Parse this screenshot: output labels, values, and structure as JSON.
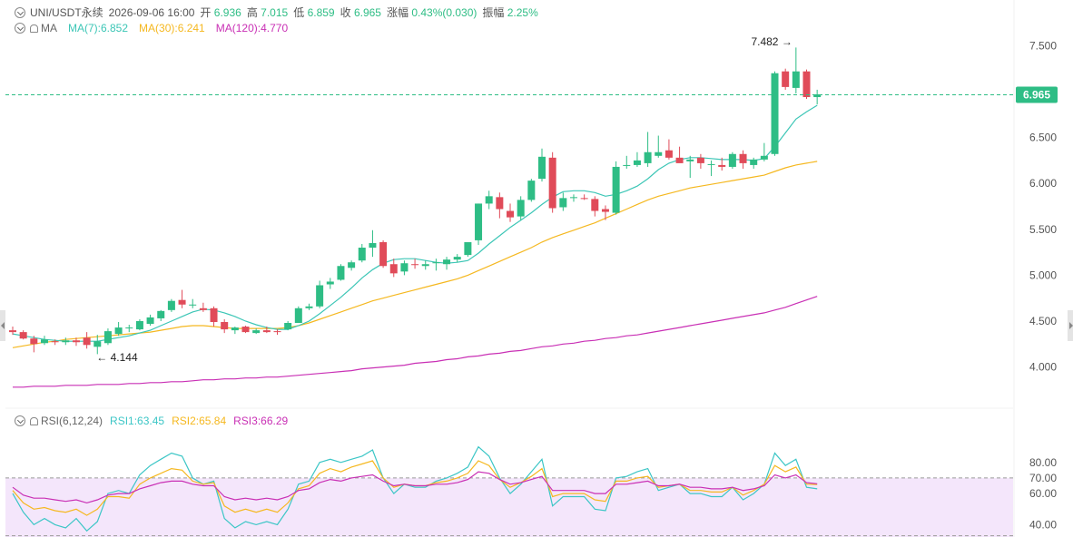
{
  "header": {
    "symbol": "UNI/USDT永续",
    "datetime": "2026-09-06 16:00",
    "open_label": "开",
    "open": "6.936",
    "high_label": "高",
    "high": "7.015",
    "low_label": "低",
    "low": "6.859",
    "close_label": "收",
    "close": "6.965",
    "change_label": "涨幅",
    "change": "0.43%(0.030)",
    "amplitude_label": "振幅",
    "amplitude": "2.25%"
  },
  "ma_legend": {
    "label": "MA",
    "ma7": "MA(7):6.852",
    "ma30": "MA(30):6.241",
    "ma120": "MA(120):4.770"
  },
  "rsi_legend": {
    "label": "RSI(6,12,24)",
    "rsi1": "RSI1:63.45",
    "rsi2": "RSI2:65.84",
    "rsi3": "RSI3:66.29"
  },
  "colors": {
    "up": "#2ebd85",
    "down": "#e04b59",
    "ma7": "#3cc6b6",
    "ma30": "#f5b820",
    "ma120": "#c930b5",
    "rsi1": "#3cc6c6",
    "rsi2": "#f5b820",
    "rsi3": "#c930b5",
    "rsi_band": "#f4e6fb",
    "price_tag": "#2ebd85"
  },
  "chart_data": [
    {
      "type": "candlestick",
      "pair": "UNI/USDT",
      "current_price": 6.965,
      "current_price_label": "6.965",
      "ylim": [
        3.65,
        7.8
      ],
      "y_ticks": [
        4.0,
        4.5,
        5.0,
        5.5,
        6.0,
        6.5,
        7.0,
        7.5
      ],
      "y_tick_labels": [
        "4.000",
        "4.500",
        "5.000",
        "5.500",
        "6.000",
        "6.500",
        "",
        "7.500"
      ],
      "annotations": [
        {
          "text": "7.482 →",
          "candle": 74,
          "value": 7.482
        },
        {
          "text": "← 4.144",
          "candle": 8,
          "value": 4.144
        }
      ],
      "candles": [
        [
          4.4,
          4.44,
          4.35,
          4.38
        ],
        [
          4.38,
          4.4,
          4.3,
          4.31
        ],
        [
          4.31,
          4.34,
          4.16,
          4.25
        ],
        [
          4.26,
          4.34,
          4.24,
          4.3
        ],
        [
          4.28,
          4.3,
          4.24,
          4.27
        ],
        [
          4.27,
          4.32,
          4.24,
          4.29
        ],
        [
          4.29,
          4.32,
          4.23,
          4.27
        ],
        [
          4.32,
          4.38,
          4.2,
          4.24
        ],
        [
          4.22,
          4.35,
          4.14,
          4.28
        ],
        [
          4.26,
          4.42,
          4.24,
          4.39
        ],
        [
          4.36,
          4.49,
          4.34,
          4.43
        ],
        [
          4.42,
          4.46,
          4.38,
          4.43
        ],
        [
          4.41,
          4.52,
          4.4,
          4.5
        ],
        [
          4.47,
          4.57,
          4.45,
          4.54
        ],
        [
          4.53,
          4.62,
          4.5,
          4.61
        ],
        [
          4.62,
          4.74,
          4.6,
          4.72
        ],
        [
          4.73,
          4.84,
          4.64,
          4.68
        ],
        [
          4.68,
          4.74,
          4.64,
          4.68
        ],
        [
          4.64,
          4.7,
          4.6,
          4.62
        ],
        [
          4.64,
          4.66,
          4.44,
          4.49
        ],
        [
          4.49,
          4.52,
          4.37,
          4.41
        ],
        [
          4.4,
          4.44,
          4.36,
          4.43
        ],
        [
          4.44,
          4.45,
          4.37,
          4.38
        ],
        [
          4.37,
          4.42,
          4.36,
          4.4
        ],
        [
          4.4,
          4.44,
          4.37,
          4.38
        ],
        [
          4.39,
          4.41,
          4.35,
          4.38
        ],
        [
          4.41,
          4.5,
          4.4,
          4.48
        ],
        [
          4.48,
          4.66,
          4.48,
          4.64
        ],
        [
          4.64,
          4.69,
          4.62,
          4.66
        ],
        [
          4.66,
          4.94,
          4.64,
          4.89
        ],
        [
          4.9,
          4.97,
          4.85,
          4.93
        ],
        [
          4.95,
          5.12,
          4.94,
          5.1
        ],
        [
          5.08,
          5.16,
          5.05,
          5.14
        ],
        [
          5.16,
          5.34,
          5.14,
          5.3
        ],
        [
          5.3,
          5.49,
          5.2,
          5.35
        ],
        [
          5.36,
          5.38,
          5.08,
          5.1
        ],
        [
          5.12,
          5.18,
          4.98,
          5.02
        ],
        [
          5.04,
          5.16,
          5.0,
          5.13
        ],
        [
          5.12,
          5.18,
          5.07,
          5.11
        ],
        [
          5.1,
          5.16,
          5.06,
          5.12
        ],
        [
          5.13,
          5.18,
          5.05,
          5.14
        ],
        [
          5.12,
          5.2,
          5.06,
          5.17
        ],
        [
          5.17,
          5.23,
          5.14,
          5.2
        ],
        [
          5.22,
          5.34,
          5.2,
          5.36
        ],
        [
          5.38,
          5.78,
          5.33,
          5.78
        ],
        [
          5.78,
          5.92,
          5.72,
          5.86
        ],
        [
          5.85,
          5.9,
          5.62,
          5.72
        ],
        [
          5.7,
          5.78,
          5.58,
          5.63
        ],
        [
          5.64,
          5.86,
          5.6,
          5.82
        ],
        [
          5.82,
          6.05,
          5.8,
          6.03
        ],
        [
          6.05,
          6.38,
          6.02,
          6.29
        ],
        [
          6.28,
          6.34,
          5.68,
          5.73
        ],
        [
          5.74,
          5.9,
          5.7,
          5.84
        ],
        [
          5.84,
          5.88,
          5.8,
          5.85
        ],
        [
          5.84,
          5.88,
          5.82,
          5.83
        ],
        [
          5.83,
          5.86,
          5.64,
          5.7
        ],
        [
          5.72,
          5.76,
          5.6,
          5.69
        ],
        [
          5.68,
          6.24,
          5.66,
          6.18
        ],
        [
          6.2,
          6.3,
          6.16,
          6.2
        ],
        [
          6.2,
          6.34,
          6.18,
          6.25
        ],
        [
          6.22,
          6.56,
          6.18,
          6.34
        ],
        [
          6.3,
          6.52,
          6.28,
          6.34
        ],
        [
          6.36,
          6.48,
          6.26,
          6.28
        ],
        [
          6.28,
          6.4,
          6.24,
          6.22
        ],
        [
          6.24,
          6.3,
          6.06,
          6.26
        ],
        [
          6.28,
          6.32,
          6.16,
          6.22
        ],
        [
          6.2,
          6.25,
          6.08,
          6.21
        ],
        [
          6.2,
          6.28,
          6.14,
          6.18
        ],
        [
          6.18,
          6.34,
          6.16,
          6.32
        ],
        [
          6.32,
          6.36,
          6.16,
          6.22
        ],
        [
          6.2,
          6.28,
          6.16,
          6.26
        ],
        [
          6.26,
          6.44,
          6.24,
          6.3
        ],
        [
          6.32,
          7.22,
          6.3,
          7.2
        ],
        [
          7.22,
          7.25,
          7.02,
          7.05
        ],
        [
          7.04,
          7.48,
          6.98,
          7.22
        ],
        [
          7.22,
          7.24,
          6.92,
          6.94
        ],
        [
          6.94,
          7.02,
          6.86,
          6.97
        ]
      ],
      "ma7": [
        4.36,
        4.34,
        4.32,
        4.3,
        4.29,
        4.28,
        4.28,
        4.28,
        4.28,
        4.3,
        4.32,
        4.34,
        4.37,
        4.4,
        4.45,
        4.5,
        4.55,
        4.6,
        4.63,
        4.62,
        4.59,
        4.55,
        4.5,
        4.46,
        4.43,
        4.41,
        4.41,
        4.45,
        4.5,
        4.58,
        4.67,
        4.76,
        4.86,
        4.97,
        5.06,
        5.13,
        5.17,
        5.18,
        5.18,
        5.16,
        5.14,
        5.13,
        5.14,
        5.16,
        5.24,
        5.34,
        5.43,
        5.52,
        5.6,
        5.68,
        5.77,
        5.85,
        5.91,
        5.92,
        5.92,
        5.9,
        5.86,
        5.88,
        5.92,
        5.97,
        6.05,
        6.15,
        6.22,
        6.26,
        6.28,
        6.28,
        6.27,
        6.26,
        6.26,
        6.26,
        6.25,
        6.27,
        6.4,
        6.55,
        6.7,
        6.78,
        6.85
      ],
      "ma30": [
        4.21,
        4.23,
        4.25,
        4.27,
        4.28,
        4.3,
        4.31,
        4.32,
        4.33,
        4.34,
        4.35,
        4.36,
        4.37,
        4.38,
        4.4,
        4.42,
        4.44,
        4.45,
        4.45,
        4.44,
        4.43,
        4.42,
        4.42,
        4.42,
        4.42,
        4.42,
        4.43,
        4.45,
        4.48,
        4.52,
        4.56,
        4.6,
        4.64,
        4.68,
        4.72,
        4.75,
        4.78,
        4.81,
        4.84,
        4.87,
        4.9,
        4.93,
        4.96,
        5.0,
        5.05,
        5.1,
        5.15,
        5.2,
        5.25,
        5.3,
        5.36,
        5.41,
        5.45,
        5.49,
        5.53,
        5.57,
        5.62,
        5.67,
        5.72,
        5.77,
        5.82,
        5.86,
        5.89,
        5.92,
        5.95,
        5.97,
        5.99,
        6.01,
        6.03,
        6.05,
        6.07,
        6.09,
        6.13,
        6.17,
        6.2,
        6.22,
        6.24
      ],
      "ma120": [
        3.78,
        3.78,
        3.79,
        3.79,
        3.79,
        3.8,
        3.8,
        3.8,
        3.81,
        3.81,
        3.81,
        3.82,
        3.82,
        3.83,
        3.83,
        3.84,
        3.84,
        3.85,
        3.86,
        3.86,
        3.87,
        3.87,
        3.88,
        3.88,
        3.89,
        3.89,
        3.9,
        3.91,
        3.92,
        3.93,
        3.94,
        3.95,
        3.96,
        3.98,
        3.99,
        4.0,
        4.01,
        4.02,
        4.04,
        4.05,
        4.06,
        4.08,
        4.09,
        4.11,
        4.12,
        4.14,
        4.15,
        4.17,
        4.18,
        4.2,
        4.22,
        4.23,
        4.25,
        4.26,
        4.28,
        4.29,
        4.31,
        4.32,
        4.34,
        4.35,
        4.37,
        4.39,
        4.41,
        4.43,
        4.45,
        4.47,
        4.49,
        4.51,
        4.53,
        4.55,
        4.57,
        4.59,
        4.62,
        4.65,
        4.69,
        4.73,
        4.77
      ]
    },
    {
      "type": "line",
      "indicator": "RSI(6,12,24)",
      "ylim": [
        35,
        102
      ],
      "y_ticks": [
        40,
        60,
        70,
        80
      ],
      "y_tick_labels": [
        "40.00",
        "60.00",
        "70.00",
        "80.00"
      ],
      "band": [
        30,
        70
      ],
      "series": [
        {
          "name": "RSI1",
          "values": [
            60,
            48,
            40,
            44,
            40,
            38,
            44,
            36,
            42,
            60,
            62,
            60,
            72,
            78,
            82,
            86,
            84,
            70,
            66,
            68,
            44,
            38,
            42,
            40,
            42,
            40,
            50,
            66,
            68,
            80,
            82,
            80,
            82,
            84,
            88,
            70,
            60,
            66,
            64,
            64,
            68,
            70,
            73,
            77,
            90,
            84,
            70,
            60,
            66,
            74,
            82,
            52,
            58,
            58,
            58,
            50,
            49,
            70,
            71,
            74,
            76,
            62,
            64,
            66,
            60,
            60,
            58,
            58,
            64,
            56,
            60,
            66,
            86,
            78,
            82,
            64,
            63
          ]
        },
        {
          "name": "RSI2",
          "values": [
            62,
            54,
            50,
            51,
            49,
            48,
            50,
            46,
            50,
            58,
            58,
            57,
            66,
            70,
            73,
            76,
            75,
            68,
            66,
            67,
            52,
            48,
            50,
            48,
            50,
            48,
            54,
            63,
            65,
            73,
            76,
            74,
            77,
            79,
            81,
            70,
            64,
            66,
            65,
            65,
            67,
            68,
            70,
            73,
            81,
            78,
            69,
            64,
            67,
            71,
            76,
            58,
            60,
            60,
            60,
            56,
            55,
            68,
            68,
            70,
            71,
            64,
            65,
            66,
            62,
            62,
            61,
            61,
            64,
            59,
            62,
            66,
            78,
            74,
            77,
            66,
            65.84
          ]
        },
        {
          "name": "RSI3",
          "values": [
            64,
            59,
            57,
            57,
            56,
            55,
            56,
            54,
            56,
            59,
            60,
            60,
            63,
            65,
            67,
            68,
            68,
            66,
            65,
            65,
            58,
            56,
            57,
            56,
            57,
            56,
            58,
            62,
            63,
            67,
            69,
            68,
            70,
            71,
            72,
            68,
            65,
            66,
            65,
            65,
            66,
            66,
            67,
            69,
            74,
            73,
            69,
            66,
            67,
            69,
            71,
            62,
            62,
            62,
            62,
            60,
            60,
            66,
            66,
            67,
            68,
            65,
            65,
            66,
            64,
            64,
            63,
            63,
            64,
            62,
            63,
            65,
            72,
            70,
            72,
            67,
            66.29
          ]
        }
      ]
    }
  ]
}
